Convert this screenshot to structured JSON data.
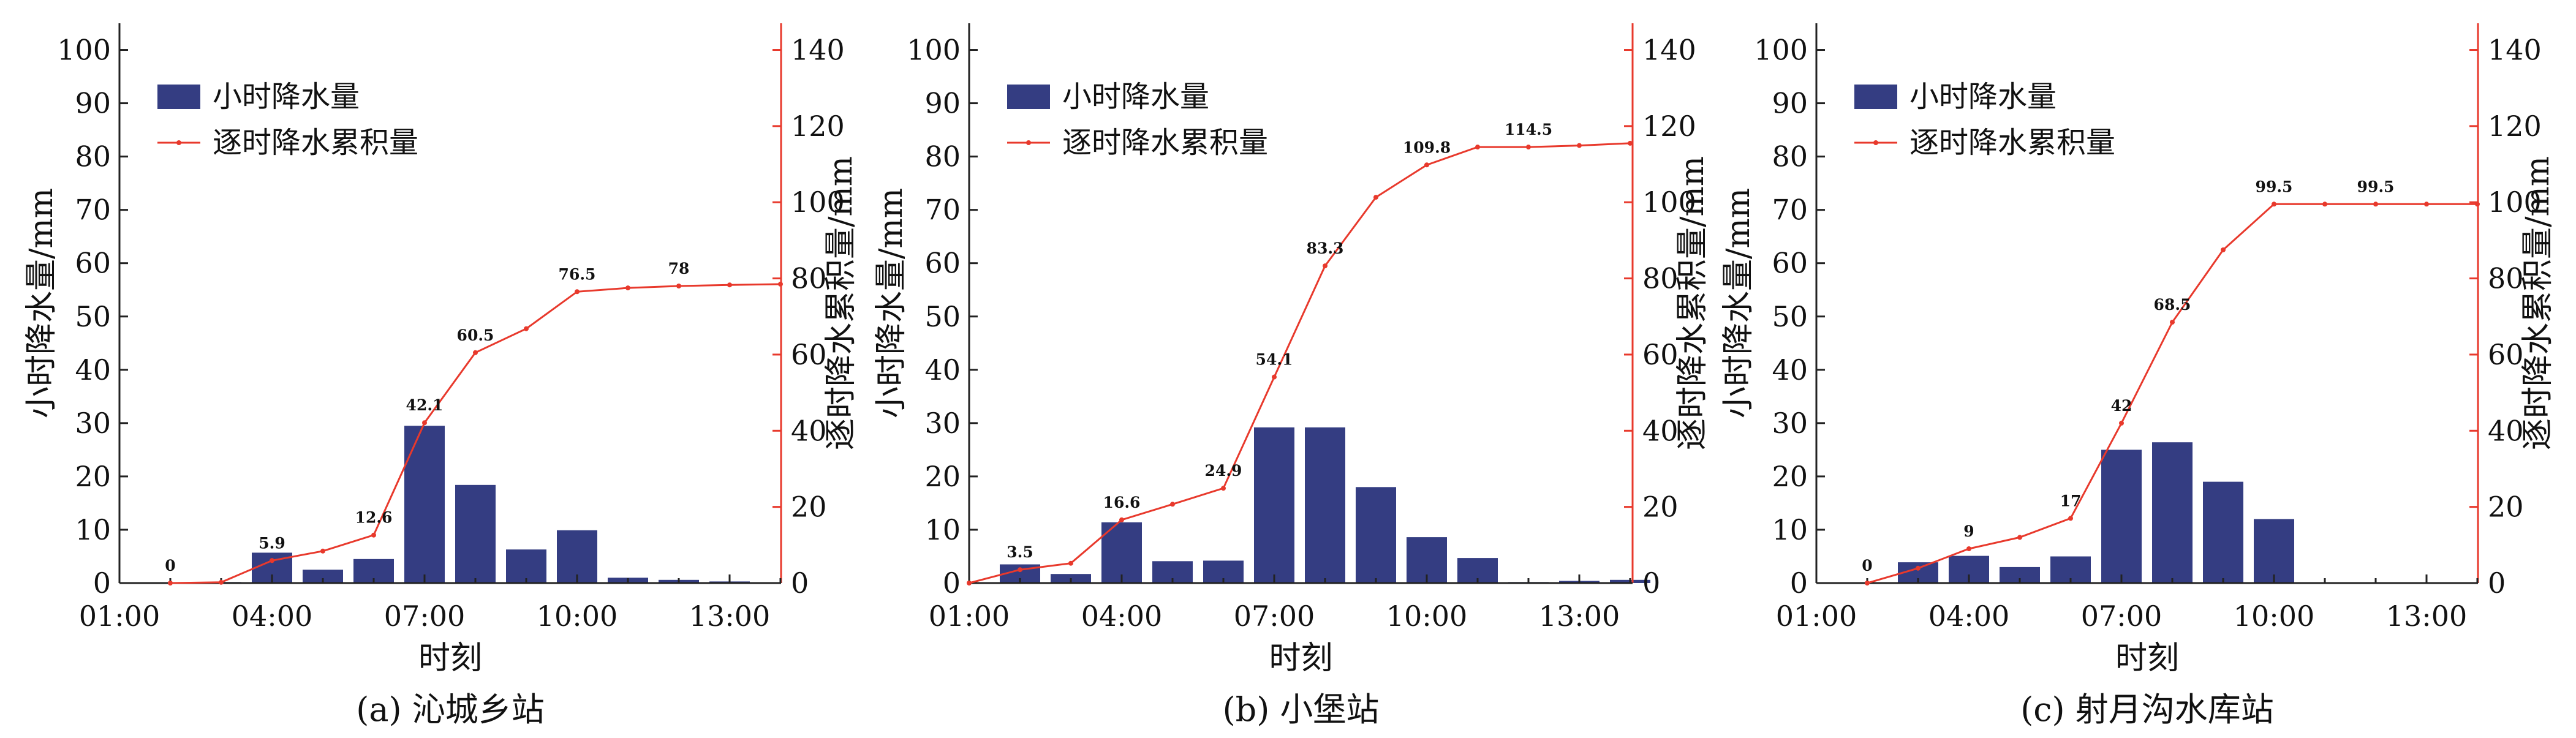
{
  "figure": {
    "bar_color": "#343d82",
    "line_color": "#e8392c",
    "axis_color": "#222222",
    "right_axis_color": "#e8392c"
  },
  "chart_data": [
    {
      "type": "bar+line",
      "caption": "(a) 沁城乡站",
      "xlabel": "时刻",
      "ylabel": "小时降水量/mm",
      "y2label": "逐时降水累积量/mm",
      "xticks": [
        "01:00",
        "04:00",
        "07:00",
        "10:00",
        "13:00"
      ],
      "hours": [
        1,
        2,
        3,
        4,
        5,
        6,
        7,
        8,
        9,
        10,
        11,
        12,
        13,
        14
      ],
      "ylim": [
        0,
        105
      ],
      "y2lim": [
        0,
        147
      ],
      "yticks": [
        0,
        10,
        20,
        30,
        40,
        50,
        60,
        70,
        80,
        90,
        100
      ],
      "y2ticks": [
        0,
        20,
        40,
        60,
        80,
        100,
        120,
        140
      ],
      "legend_position": "top-left",
      "series": [
        {
          "name": "小时降水量",
          "kind": "bar",
          "axis": "left",
          "x": [
            2,
            3,
            4,
            5,
            6,
            7,
            8,
            9,
            10,
            11,
            12,
            13
          ],
          "values": [
            0,
            0.2,
            5.7,
            2.5,
            4.5,
            29.5,
            18.4,
            6.3,
            9.9,
            1.0,
            0.6,
            0.3
          ]
        },
        {
          "name": "逐时降水累积量",
          "kind": "line",
          "axis": "right",
          "x": [
            2,
            3,
            4,
            5,
            6,
            7,
            8,
            9,
            10,
            11,
            12,
            13,
            14
          ],
          "values": [
            0,
            0.2,
            5.9,
            8.4,
            12.6,
            42.1,
            60.5,
            66.8,
            76.5,
            77.5,
            78,
            78.3,
            78.5
          ]
        }
      ],
      "data_labels": [
        {
          "x": 2,
          "y": 0,
          "text": "0"
        },
        {
          "x": 4,
          "y": 5.9,
          "text": "5.9"
        },
        {
          "x": 6,
          "y": 12.6,
          "text": "12.6"
        },
        {
          "x": 7,
          "y": 42.1,
          "text": "42.1"
        },
        {
          "x": 8,
          "y": 60.5,
          "text": "60.5"
        },
        {
          "x": 10,
          "y": 76.5,
          "text": "76.5"
        },
        {
          "x": 12,
          "y": 78,
          "text": "78"
        }
      ]
    },
    {
      "type": "bar+line",
      "caption": "(b) 小堡站",
      "xlabel": "时刻",
      "ylabel": "小时降水量/mm",
      "y2label": "逐时降水累积量/mm",
      "xticks": [
        "01:00",
        "04:00",
        "07:00",
        "10:00",
        "13:00"
      ],
      "hours": [
        1,
        2,
        3,
        4,
        5,
        6,
        7,
        8,
        9,
        10,
        11,
        12,
        13,
        14
      ],
      "ylim": [
        0,
        105
      ],
      "y2lim": [
        0,
        147
      ],
      "yticks": [
        0,
        10,
        20,
        30,
        40,
        50,
        60,
        70,
        80,
        90,
        100
      ],
      "y2ticks": [
        0,
        20,
        40,
        60,
        80,
        100,
        120,
        140
      ],
      "legend_position": "top-left",
      "series": [
        {
          "name": "小时降水量",
          "kind": "bar",
          "axis": "left",
          "x": [
            2,
            3,
            4,
            5,
            6,
            7,
            8,
            9,
            10,
            11,
            12,
            13,
            14
          ],
          "values": [
            3.5,
            1.7,
            11.4,
            4.1,
            4.2,
            29.2,
            29.2,
            18.0,
            8.6,
            4.7,
            0.2,
            0.4,
            0.6
          ]
        },
        {
          "name": "逐时降水累积量",
          "kind": "line",
          "axis": "right",
          "x": [
            1,
            2,
            3,
            4,
            5,
            6,
            7,
            8,
            9,
            10,
            11,
            12,
            13,
            14
          ],
          "values": [
            0,
            3.5,
            5.2,
            16.6,
            20.7,
            24.9,
            54.1,
            83.3,
            101.3,
            109.8,
            114.5,
            114.5,
            114.9,
            115.5
          ]
        }
      ],
      "data_labels": [
        {
          "x": 2,
          "y": 3.5,
          "text": "3.5"
        },
        {
          "x": 4,
          "y": 16.6,
          "text": "16.6"
        },
        {
          "x": 6,
          "y": 24.9,
          "text": "24.9"
        },
        {
          "x": 7,
          "y": 54.1,
          "text": "54.1"
        },
        {
          "x": 8,
          "y": 83.3,
          "text": "83.3"
        },
        {
          "x": 10,
          "y": 109.8,
          "text": "109.8"
        },
        {
          "x": 12,
          "y": 114.5,
          "text": "114.5"
        }
      ]
    },
    {
      "type": "bar+line",
      "caption": "(c) 射月沟水库站",
      "xlabel": "时刻",
      "ylabel": "小时降水量/mm",
      "y2label": "逐时降水累积量/mm",
      "xticks": [
        "01:00",
        "04:00",
        "07:00",
        "10:00",
        "13:00"
      ],
      "hours": [
        1,
        2,
        3,
        4,
        5,
        6,
        7,
        8,
        9,
        10,
        11,
        12,
        13,
        14
      ],
      "ylim": [
        0,
        105
      ],
      "y2lim": [
        0,
        147
      ],
      "yticks": [
        0,
        10,
        20,
        30,
        40,
        50,
        60,
        70,
        80,
        90,
        100
      ],
      "y2ticks": [
        0,
        20,
        40,
        60,
        80,
        100,
        120,
        140
      ],
      "legend_position": "top-left",
      "series": [
        {
          "name": "小时降水量",
          "kind": "bar",
          "axis": "left",
          "x": [
            3,
            4,
            5,
            6,
            7,
            8,
            9,
            10
          ],
          "values": [
            3.9,
            5.1,
            3.0,
            5.0,
            25.0,
            26.4,
            19.0,
            12.0
          ]
        },
        {
          "name": "逐时降水累积量",
          "kind": "line",
          "axis": "right",
          "x": [
            2,
            3,
            4,
            5,
            6,
            7,
            8,
            9,
            10,
            11,
            12,
            13,
            14
          ],
          "values": [
            0,
            3.9,
            9,
            12,
            17,
            42,
            68.5,
            87.5,
            99.5,
            99.5,
            99.5,
            99.5,
            99.5
          ]
        }
      ],
      "data_labels": [
        {
          "x": 2,
          "y": 0,
          "text": "0"
        },
        {
          "x": 4,
          "y": 9,
          "text": "9"
        },
        {
          "x": 6,
          "y": 17,
          "text": "17"
        },
        {
          "x": 7,
          "y": 42,
          "text": "42"
        },
        {
          "x": 8,
          "y": 68.5,
          "text": "68.5"
        },
        {
          "x": 10,
          "y": 99.5,
          "text": "99.5"
        },
        {
          "x": 12,
          "y": 99.5,
          "text": "99.5"
        }
      ]
    }
  ]
}
